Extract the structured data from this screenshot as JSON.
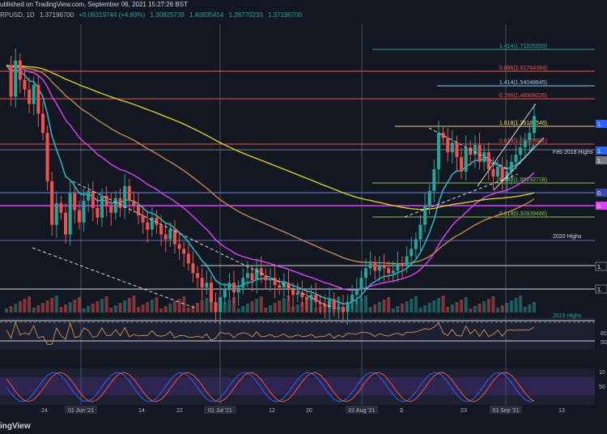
{
  "header": {
    "published_text": "ublished on TradingView.com, September 06, 2021 15:27:26 BST",
    "symbol": "RPUSD, 1D",
    "open": "1.37196700",
    "change": "+0.06319744 (+4.83%)",
    "o2": "1.30825739",
    "h": "1.40835414",
    "l": "1.28770233",
    "c": "1.37196700"
  },
  "branding": {
    "text": "ingView"
  },
  "x_labels": [
    "24",
    "01 Jun '21",
    "14",
    "22",
    "01 Jul '21",
    "12",
    "20",
    "01 Aug '21",
    "9",
    "23",
    "01 Sep '21",
    "13"
  ],
  "fib_levels": [
    {
      "label": "1.414(1.71826893)",
      "color": "#26a69a"
    },
    {
      "label": "0.886(1.61764384)",
      "color": "#ef5350"
    },
    {
      "label": "1.414(1.54048845)",
      "color": "#90caf9"
    },
    {
      "label": "0.786(1.48908226)",
      "color": "#ef5350"
    },
    {
      "label": "1.618(1.36182546)",
      "color": "#f7d26a"
    },
    {
      "label": "0.618(1.27309881)",
      "color": "#ef5350"
    },
    {
      "label": "0.382(1.09232718)",
      "color": "#8bc34a"
    },
    {
      "label": "0.618(0.92839486)",
      "color": "#8bc34a"
    }
  ],
  "annotations": [
    "Feb 2018 Highs",
    "2020 Highs",
    "2019 Highs"
  ],
  "right_axis_tags": [
    "1.",
    "1.",
    "1.",
    "0.",
    "0.",
    "1.",
    "1."
  ],
  "rsi_levels": [
    "60",
    "50"
  ],
  "stoch_levels": [
    "10",
    "50"
  ],
  "chart_data": {
    "type": "candlestick",
    "title": "XRPUSD, 1D",
    "price_range_approx": [
      0.55,
      1.75
    ],
    "price_path": [
      1.58,
      1.45,
      1.6,
      1.52,
      1.48,
      1.42,
      1.5,
      1.38,
      1.3,
      1.1,
      0.92,
      1.01,
      0.97,
      0.88,
      1.05,
      0.98,
      0.93,
      1.02,
      1.06,
      0.99,
      0.95,
      1.04,
      1.0,
      0.97,
      1.03,
      0.99,
      1.08,
      1.02,
      1.0,
      0.96,
      0.93,
      0.9,
      0.95,
      0.92,
      0.88,
      0.86,
      0.9,
      0.84,
      0.82,
      0.8,
      0.76,
      0.72,
      0.7,
      0.66,
      0.68,
      0.6,
      0.56,
      0.62,
      0.65,
      0.68,
      0.64,
      0.66,
      0.7,
      0.72,
      0.69,
      0.74,
      0.71,
      0.69,
      0.7,
      0.67,
      0.66,
      0.68,
      0.65,
      0.63,
      0.64,
      0.62,
      0.61,
      0.63,
      0.6,
      0.59,
      0.58,
      0.61,
      0.57,
      0.58,
      0.56,
      0.6,
      0.63,
      0.65,
      0.7,
      0.74,
      0.76,
      0.73,
      0.75,
      0.74,
      0.72,
      0.73,
      0.76,
      0.75,
      0.79,
      0.82,
      0.86,
      0.92,
      1.0,
      1.06,
      1.15,
      1.3,
      1.28,
      1.22,
      1.26,
      1.2,
      1.14,
      1.24,
      1.21,
      1.25,
      1.18,
      1.22,
      1.15,
      1.12,
      1.16,
      1.1,
      1.14,
      1.18,
      1.21,
      1.24,
      1.27,
      1.3,
      1.37
    ],
    "series": [
      {
        "name": "EMA 20",
        "color": "#26c6da"
      },
      {
        "name": "EMA 50",
        "color": "#e040fb"
      },
      {
        "name": "EMA 100",
        "color": "#c2874e"
      },
      {
        "name": "EMA 200",
        "color": "#d4cc2c"
      }
    ],
    "grid": false
  }
}
